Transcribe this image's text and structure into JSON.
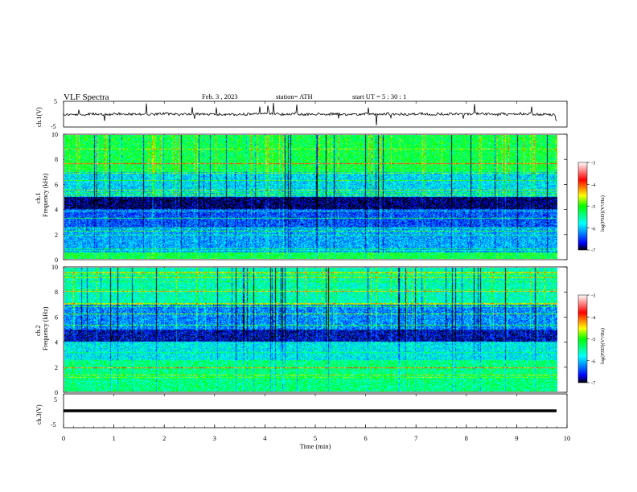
{
  "header": {
    "title": "VLF  Spectra",
    "date": "Feb. 3  , 2023",
    "station": "station= ATH",
    "start": "start  UT  =   5  : 30 : 1"
  },
  "colorbar": {
    "label": "log(PSD)(V²/Hz)",
    "ticks": [
      "-3",
      "-4",
      "-5",
      "-6",
      "-7"
    ],
    "range": [
      -7,
      -3
    ],
    "stops": [
      "#000000",
      "#0000ff",
      "#00ffff",
      "#00ff00",
      "#ffff00",
      "#ff0000",
      "#ffffff"
    ]
  },
  "chart_data": [
    {
      "type": "line",
      "panel": "ch1-waveform",
      "ylabel": "ch.1(V)",
      "ylim": [
        -5,
        5
      ],
      "yticks": [
        "5",
        "-5"
      ],
      "x_range_min": [
        0,
        9.8
      ],
      "baseline_approx": 0,
      "color": "#000000"
    },
    {
      "type": "heatmap",
      "panel": "ch1-spectrogram",
      "ylabel": "ch.1\nFrequency  (kHz)",
      "ylim_khz": [
        0,
        10
      ],
      "yticks": [
        "10",
        "8",
        "6",
        "4",
        "2",
        "0"
      ],
      "x_range_min": [
        0,
        9.8
      ],
      "zlabel": "log(PSD)(V²/Hz)",
      "zlim": [
        -7,
        -3
      ],
      "band_levels_approx": [
        {
          "from_khz": 0,
          "to_khz": 0.5,
          "level": -5.2
        },
        {
          "from_khz": 0.5,
          "to_khz": 2.5,
          "level": -6.1
        },
        {
          "from_khz": 2.5,
          "to_khz": 4.0,
          "level": -6.4
        },
        {
          "from_khz": 4.0,
          "to_khz": 5.0,
          "level": -6.9
        },
        {
          "from_khz": 5.0,
          "to_khz": 7.0,
          "level": -5.9
        },
        {
          "from_khz": 7.0,
          "to_khz": 10.0,
          "level": -5.2
        }
      ]
    },
    {
      "type": "heatmap",
      "panel": "ch2-spectrogram",
      "ylabel": "ch.2\nFrequency  (kHz)",
      "ylim_khz": [
        0,
        10
      ],
      "yticks": [
        "10",
        "8",
        "6",
        "4",
        "2",
        "0"
      ],
      "x_range_min": [
        0,
        9.8
      ],
      "zlabel": "log(PSD)(V²/Hz)",
      "zlim": [
        -7,
        -3
      ],
      "band_levels_approx": [
        {
          "from_khz": 0,
          "to_khz": 2.5,
          "level": -5.4
        },
        {
          "from_khz": 2.5,
          "to_khz": 4.0,
          "level": -5.8
        },
        {
          "from_khz": 4.0,
          "to_khz": 5.0,
          "level": -6.7
        },
        {
          "from_khz": 5.0,
          "to_khz": 7.0,
          "level": -6.2
        },
        {
          "from_khz": 7.0,
          "to_khz": 10.0,
          "level": -5.6
        }
      ]
    },
    {
      "type": "line",
      "panel": "ch3-waveform",
      "ylabel": "ch.3(V)",
      "ylim": [
        -5,
        5
      ],
      "yticks": [
        "5",
        "-5"
      ],
      "x_range_min": [
        0,
        9.8
      ],
      "baseline_approx": 0,
      "color": "#000000"
    }
  ],
  "xaxis": {
    "label": "Time  (min)",
    "ticks": [
      "0",
      "1",
      "2",
      "3",
      "4",
      "5",
      "6",
      "7",
      "8",
      "9",
      "10"
    ],
    "xlim": [
      0,
      10
    ]
  }
}
